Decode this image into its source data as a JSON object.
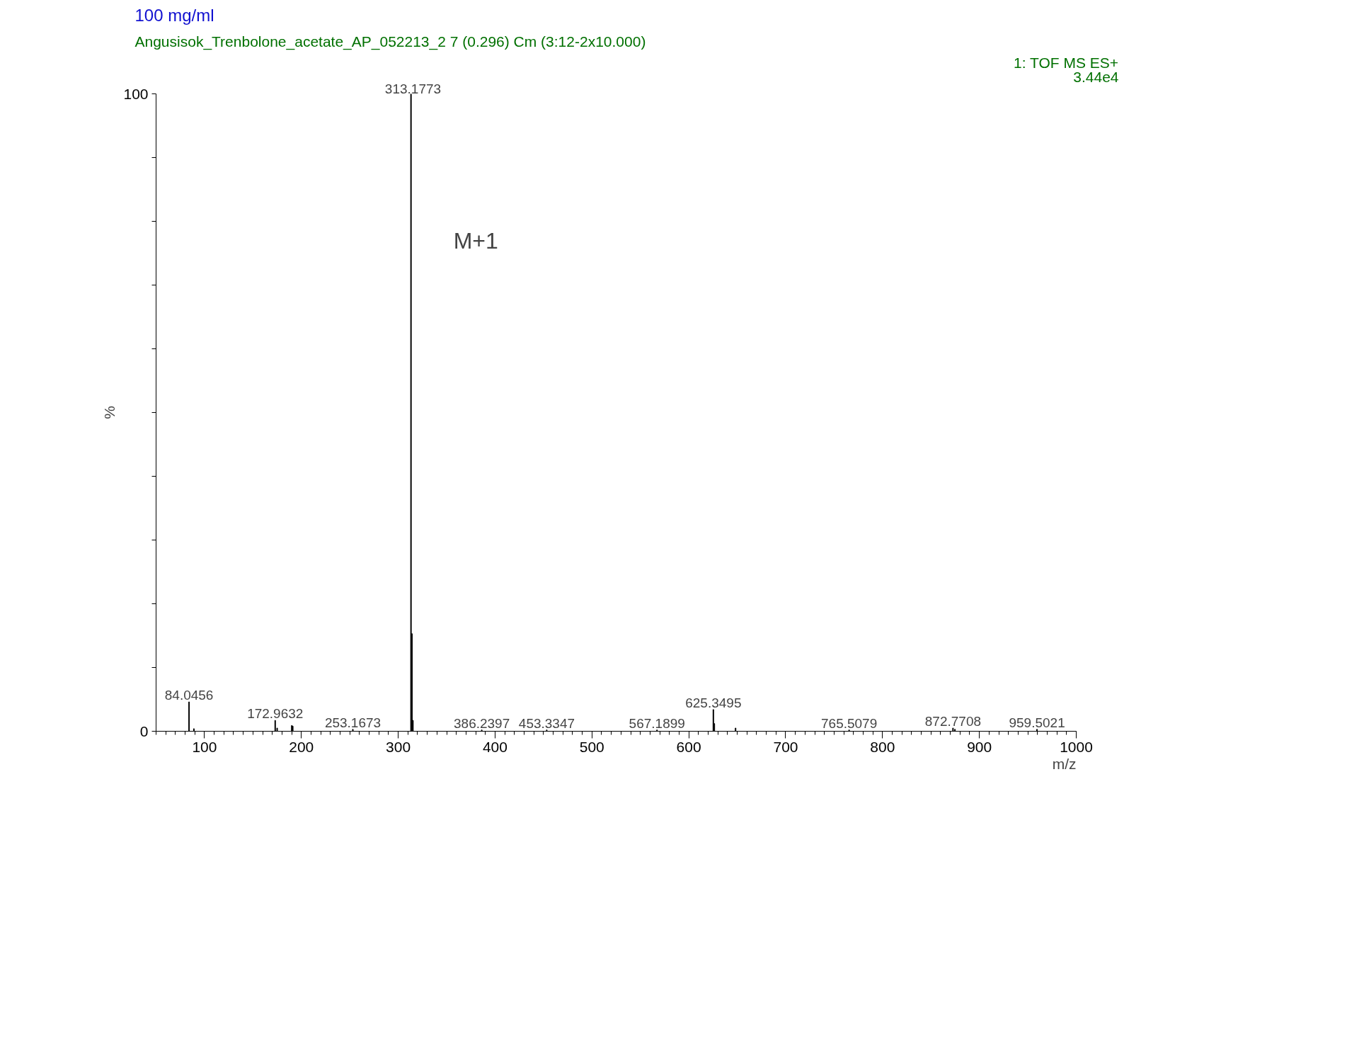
{
  "chart_data": {
    "type": "bar",
    "title": "100 mg/ml",
    "subtitle": "Angusisok_Trenbolone_acetate_AP_052213_2 7 (0.296) Cm (3:12-2x10.000)",
    "xlabel": "m/z",
    "ylabel": "%",
    "color": "#000000",
    "x": [
      84.0456,
      89.05,
      172.9632,
      175.0,
      190.1,
      191.1,
      253.1673,
      313.1773,
      314.18,
      315.18,
      386.2397,
      453.3347,
      567.1899,
      625.3495,
      626.35,
      648.3,
      765.5079,
      872.7708,
      874.8,
      959.5021
    ],
    "values": [
      4.6,
      0.4,
      1.7,
      0.5,
      0.9,
      0.8,
      0.3,
      100,
      15.3,
      1.7,
      0.2,
      0.2,
      0.2,
      3.4,
      1.2,
      0.5,
      0.2,
      0.5,
      0.3,
      0.3
    ],
    "xlim": [
      50,
      1000
    ],
    "ylim": [
      0,
      100
    ],
    "xticks": [
      100,
      200,
      300,
      400,
      500,
      600,
      700,
      800,
      900,
      1000
    ],
    "yticks": [
      0,
      {
        "value": 10,
        "label": null
      },
      {
        "value": 20,
        "label": null
      },
      {
        "value": 30,
        "label": null
      },
      {
        "value": 40,
        "label": null
      },
      {
        "value": 50,
        "label": null
      },
      {
        "value": 60,
        "label": null
      },
      {
        "value": 70,
        "label": null
      },
      {
        "value": 80,
        "label": null
      },
      {
        "value": 90,
        "label": null
      },
      100
    ],
    "grid": false,
    "annotations": [
      "1: TOF MS ES+",
      "3.44e4",
      {
        "text": "M+1",
        "x": 313.1773,
        "y": 77
      },
      {
        "text": "84.0456",
        "x": 84.0456,
        "y": 4.6
      },
      {
        "text": "172.9632",
        "x": 172.9632,
        "y": 1.7
      },
      {
        "text": "253.1673",
        "x": 253.1673,
        "y": 0.3
      },
      {
        "text": "313.1773",
        "x": 313.1773,
        "y": 100
      },
      {
        "text": "386.2397",
        "x": 386.2397,
        "y": 0.2
      },
      {
        "text": "453.3347",
        "x": 453.3347,
        "y": 0.2
      },
      {
        "text": "567.1899",
        "x": 567.1899,
        "y": 0.2
      },
      {
        "text": "625.3495",
        "x": 625.3495,
        "y": 3.4
      },
      {
        "text": "765.5079",
        "x": 765.5079,
        "y": 0.2
      },
      {
        "text": "872.7708",
        "x": 872.7708,
        "y": 0.5
      },
      {
        "text": "959.5021",
        "x": 959.5021,
        "y": 0.3
      }
    ]
  }
}
